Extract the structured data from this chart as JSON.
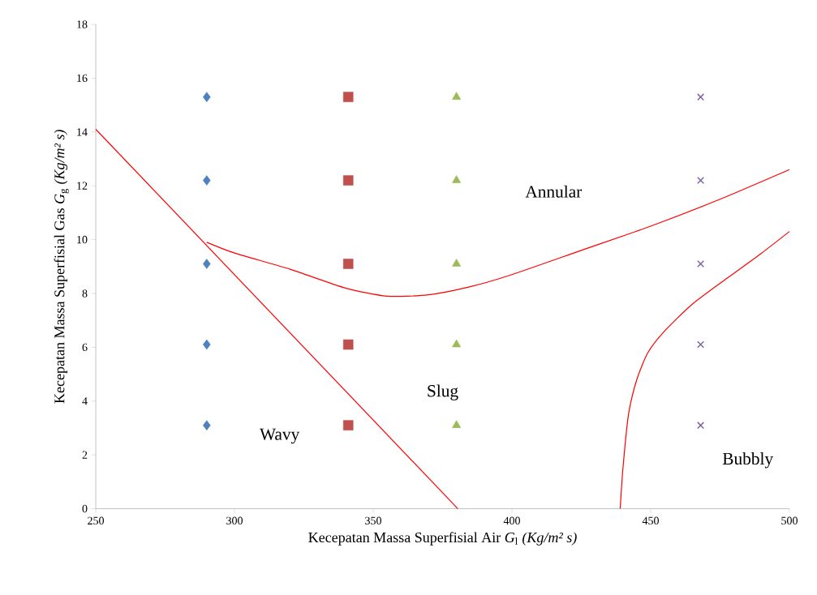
{
  "chart_data": {
    "type": "scatter",
    "xlabel": "Kecepatan Massa Superfisial Air *G*$_{l}$ *(Kg/m² s)*",
    "ylabel": "Kecepatan Massa Superfisial Gas *G*$_{g}$ *(Kg/m² s)*",
    "xlim": [
      250,
      500
    ],
    "ylim": [
      0,
      18
    ],
    "xticks": [
      250,
      300,
      350,
      400,
      450,
      500
    ],
    "yticks": [
      0,
      2,
      4,
      6,
      8,
      10,
      12,
      14,
      16,
      18
    ],
    "series": [
      {
        "color": "#4f81bd",
        "marker": "diamond",
        "x": [
          290,
          290,
          290,
          290,
          290
        ],
        "values": [
          15.3,
          12.2,
          9.1,
          6.1,
          3.1
        ]
      },
      {
        "color": "#c0504d",
        "marker": "square",
        "x": [
          341,
          341,
          341,
          341,
          341
        ],
        "values": [
          15.3,
          12.2,
          9.1,
          6.1,
          3.1
        ]
      },
      {
        "color": "#9bbb59",
        "marker": "triangle",
        "x": [
          380,
          380,
          380,
          380,
          380
        ],
        "values": [
          15.3,
          12.2,
          9.1,
          6.1,
          3.1
        ]
      },
      {
        "color": "#8064a2",
        "marker": "cross",
        "x": [
          468,
          468,
          468,
          468,
          468
        ],
        "values": [
          15.3,
          12.2,
          9.1,
          6.1,
          3.1
        ]
      },
      {
        "type": "line",
        "color": "#ff0000",
        "marker": "none",
        "line_style": "solid",
        "x": [
          250,
          380.5
        ],
        "values": [
          14.1,
          0
        ]
      },
      {
        "type": "line",
        "color": "#ff0000",
        "marker": "none",
        "line_style": "solid",
        "x": [
          290,
          300,
          320,
          340,
          355,
          370,
          385,
          400,
          425,
          450,
          475,
          500
        ],
        "values": [
          9.9,
          9.5,
          8.9,
          8.2,
          7.9,
          7.95,
          8.25,
          8.7,
          9.6,
          10.5,
          11.5,
          12.6
        ]
      },
      {
        "type": "line",
        "color": "#ff0000",
        "marker": "none",
        "line_style": "solid",
        "x": [
          439,
          440,
          442,
          445,
          449,
          455,
          465,
          478,
          490,
          500
        ],
        "values": [
          0,
          1.5,
          3.5,
          4.8,
          5.8,
          6.6,
          7.6,
          8.6,
          9.5,
          10.3
        ]
      }
    ],
    "annotations": [
      "Annular",
      "Slug",
      "Wavy",
      "Bubbly"
    ]
  }
}
